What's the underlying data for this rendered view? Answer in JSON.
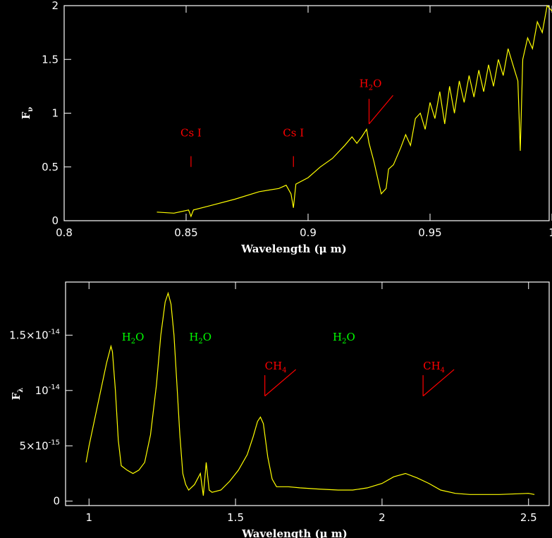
{
  "colors": {
    "background": "#000000",
    "axes": "#ffffff",
    "spectrum": "#ffff00",
    "atom": "#ff0000",
    "molecule_red": "#ff0000",
    "molecule_green": "#00ff00"
  },
  "chart_data": [
    {
      "type": "line",
      "xlabel": "Wavelength (μ m)",
      "ylabel": "Fν",
      "xlim": [
        0.8,
        1.0
      ],
      "ylim": [
        0,
        2
      ],
      "xticks": [
        {
          "v": 0.8,
          "label": "0.8"
        },
        {
          "v": 0.85,
          "label": "0.85"
        },
        {
          "v": 0.9,
          "label": "0.9"
        },
        {
          "v": 0.95,
          "label": "0.95"
        },
        {
          "v": 1.0,
          "label": "1"
        }
      ],
      "yticks": [
        {
          "v": 0,
          "label": "0"
        },
        {
          "v": 0.5,
          "label": "0.5"
        },
        {
          "v": 1,
          "label": "1"
        },
        {
          "v": 1.5,
          "label": "1.5"
        },
        {
          "v": 2,
          "label": "2"
        }
      ],
      "annotations": [
        {
          "text": "Cs I",
          "x": 0.852,
          "color": "#ff0000",
          "ly0": 0.5,
          "ly1": 0.6
        },
        {
          "text": "Cs I",
          "x": 0.894,
          "color": "#ff0000",
          "ly0": 0.5,
          "ly1": 0.6
        },
        {
          "text": "H2O",
          "x": 0.925,
          "color": "#ff0000",
          "ly0": 0.9,
          "ly1": 1.1,
          "slant": true
        }
      ],
      "spectrum": [
        [
          0.838,
          0.08
        ],
        [
          0.845,
          0.07
        ],
        [
          0.851,
          0.1
        ],
        [
          0.852,
          0.04
        ],
        [
          0.853,
          0.1
        ],
        [
          0.86,
          0.14
        ],
        [
          0.87,
          0.2
        ],
        [
          0.88,
          0.27
        ],
        [
          0.888,
          0.3
        ],
        [
          0.891,
          0.33
        ],
        [
          0.893,
          0.25
        ],
        [
          0.894,
          0.12
        ],
        [
          0.895,
          0.34
        ],
        [
          0.9,
          0.4
        ],
        [
          0.905,
          0.5
        ],
        [
          0.91,
          0.58
        ],
        [
          0.915,
          0.7
        ],
        [
          0.918,
          0.78
        ],
        [
          0.92,
          0.72
        ],
        [
          0.922,
          0.78
        ],
        [
          0.924,
          0.85
        ],
        [
          0.925,
          0.72
        ],
        [
          0.927,
          0.55
        ],
        [
          0.929,
          0.35
        ],
        [
          0.93,
          0.25
        ],
        [
          0.932,
          0.3
        ],
        [
          0.933,
          0.48
        ],
        [
          0.935,
          0.52
        ],
        [
          0.938,
          0.68
        ],
        [
          0.94,
          0.8
        ],
        [
          0.942,
          0.7
        ],
        [
          0.944,
          0.95
        ],
        [
          0.946,
          1.0
        ],
        [
          0.948,
          0.85
        ],
        [
          0.95,
          1.1
        ],
        [
          0.952,
          0.95
        ],
        [
          0.954,
          1.2
        ],
        [
          0.956,
          0.9
        ],
        [
          0.958,
          1.25
        ],
        [
          0.96,
          1.0
        ],
        [
          0.962,
          1.3
        ],
        [
          0.964,
          1.1
        ],
        [
          0.966,
          1.35
        ],
        [
          0.968,
          1.15
        ],
        [
          0.97,
          1.4
        ],
        [
          0.972,
          1.2
        ],
        [
          0.974,
          1.45
        ],
        [
          0.976,
          1.25
        ],
        [
          0.978,
          1.5
        ],
        [
          0.98,
          1.35
        ],
        [
          0.982,
          1.6
        ],
        [
          0.984,
          1.45
        ],
        [
          0.986,
          1.3
        ],
        [
          0.987,
          0.65
        ],
        [
          0.988,
          1.5
        ],
        [
          0.99,
          1.7
        ],
        [
          0.992,
          1.6
        ],
        [
          0.994,
          1.85
        ],
        [
          0.996,
          1.75
        ],
        [
          0.998,
          2.0
        ],
        [
          1.0,
          1.95
        ]
      ]
    },
    {
      "type": "line",
      "xlabel": "Wavelength (μ m)",
      "ylabel": "Fλ",
      "xlim": [
        0.92,
        2.58
      ],
      "ylim": [
        -4e-16,
        1.98e-14
      ],
      "xticks": [
        {
          "v": 1.0,
          "label": "1"
        },
        {
          "v": 1.5,
          "label": "1.5"
        },
        {
          "v": 2.0,
          "label": "2"
        },
        {
          "v": 2.5,
          "label": "2.5"
        }
      ],
      "yticks": [
        {
          "v": 0,
          "label": "0"
        },
        {
          "v": 5e-15,
          "label": "5×10",
          "exp": "-15"
        },
        {
          "v": 1e-14,
          "label": "10",
          "exp": "-14"
        },
        {
          "v": 1.5e-14,
          "label": "1.5×10",
          "exp": "-14"
        }
      ],
      "annotations": [
        {
          "text": "H2O",
          "x": 1.15,
          "yText": 1.45e-14,
          "color": "#00ff00"
        },
        {
          "text": "H2O",
          "x": 1.38,
          "yText": 1.45e-14,
          "color": "#00ff00"
        },
        {
          "text": "H2O",
          "x": 1.87,
          "yText": 1.45e-14,
          "color": "#00ff00"
        },
        {
          "text": "CH4",
          "x": 1.6,
          "yText": 1.17e-14,
          "color": "#ff0000",
          "ly0": 9.5e-15,
          "ly1": 1.1e-14,
          "slant": true
        },
        {
          "text": "CH4",
          "x": 2.14,
          "yText": 1.17e-14,
          "color": "#ff0000",
          "ly0": 9.5e-15,
          "ly1": 1.1e-14,
          "slant": true
        }
      ],
      "spectrum": [
        [
          0.99,
          3.5e-15
        ],
        [
          1.0,
          5e-15
        ],
        [
          1.02,
          7.5e-15
        ],
        [
          1.04,
          1e-14
        ],
        [
          1.06,
          1.25e-14
        ],
        [
          1.075,
          1.4e-14
        ],
        [
          1.08,
          1.35e-14
        ],
        [
          1.09,
          1e-14
        ],
        [
          1.1,
          5.5e-15
        ],
        [
          1.11,
          3.2e-15
        ],
        [
          1.13,
          2.8e-15
        ],
        [
          1.15,
          2.5e-15
        ],
        [
          1.17,
          2.8e-15
        ],
        [
          1.19,
          3.5e-15
        ],
        [
          1.21,
          6e-15
        ],
        [
          1.23,
          1.05e-14
        ],
        [
          1.245,
          1.5e-14
        ],
        [
          1.26,
          1.8e-14
        ],
        [
          1.27,
          1.88e-14
        ],
        [
          1.28,
          1.78e-14
        ],
        [
          1.29,
          1.5e-14
        ],
        [
          1.3,
          1.05e-14
        ],
        [
          1.31,
          6e-15
        ],
        [
          1.32,
          2.5e-15
        ],
        [
          1.33,
          1.5e-15
        ],
        [
          1.34,
          1e-15
        ],
        [
          1.36,
          1.5e-15
        ],
        [
          1.38,
          2.5e-15
        ],
        [
          1.39,
          5e-16
        ],
        [
          1.4,
          3.5e-15
        ],
        [
          1.41,
          1e-15
        ],
        [
          1.42,
          8e-16
        ],
        [
          1.45,
          1e-15
        ],
        [
          1.48,
          1.8e-15
        ],
        [
          1.51,
          2.8e-15
        ],
        [
          1.54,
          4.2e-15
        ],
        [
          1.56,
          5.8e-15
        ],
        [
          1.575,
          7.2e-15
        ],
        [
          1.585,
          7.6e-15
        ],
        [
          1.595,
          7e-15
        ],
        [
          1.61,
          4e-15
        ],
        [
          1.625,
          2e-15
        ],
        [
          1.64,
          1.3e-15
        ],
        [
          1.68,
          1.3e-15
        ],
        [
          1.72,
          1.2e-15
        ],
        [
          1.78,
          1.1e-15
        ],
        [
          1.85,
          1e-15
        ],
        [
          1.9,
          1e-15
        ],
        [
          1.95,
          1.2e-15
        ],
        [
          2.0,
          1.6e-15
        ],
        [
          2.04,
          2.2e-15
        ],
        [
          2.08,
          2.5e-15
        ],
        [
          2.12,
          2.1e-15
        ],
        [
          2.16,
          1.6e-15
        ],
        [
          2.2,
          1e-15
        ],
        [
          2.25,
          7e-16
        ],
        [
          2.3,
          6e-16
        ],
        [
          2.4,
          6e-16
        ],
        [
          2.5,
          7e-16
        ],
        [
          2.52,
          6e-16
        ]
      ]
    }
  ]
}
